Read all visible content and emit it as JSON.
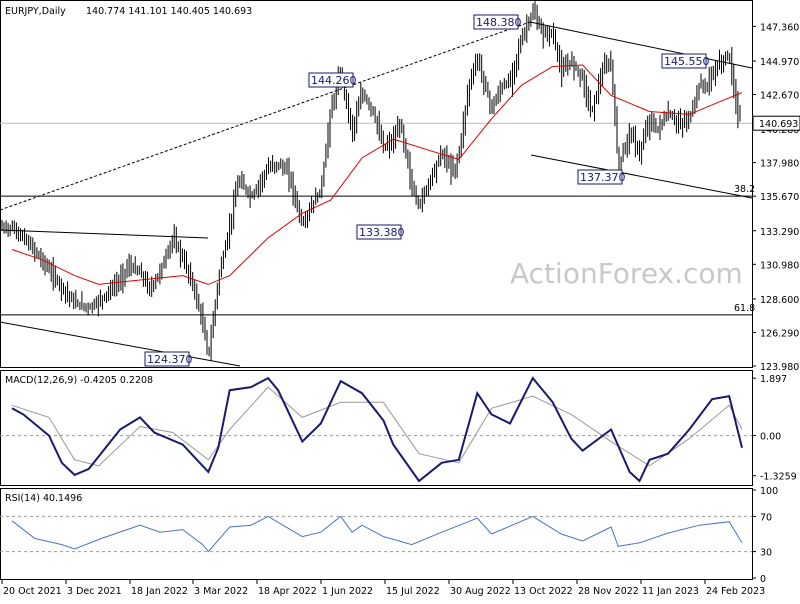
{
  "chart_data": [
    {
      "type": "candlestick",
      "title": "EURJPY,Daily",
      "ohlc_header": "140.774 141.101 140.405 140.693",
      "current_price": 140.693,
      "ylim": [
        123.98,
        148.9
      ],
      "y_ticks": [
        "147.360",
        "144.970",
        "142.670",
        "140.280",
        "137.980",
        "135.670",
        "133.290",
        "130.980",
        "128.600",
        "126.290",
        "123.980"
      ],
      "x_tick_labels": [
        "20 Oct 2021",
        "3 Dec 2021",
        "18 Jan 2022",
        "3 Mar 2022",
        "18 Apr 2022",
        "1 Jun 2022",
        "15 Jul 2022",
        "30 Aug 2022",
        "13 Oct 2022",
        "28 Nov 2022",
        "11 Jan 2023",
        "24 Feb 2023"
      ],
      "annotations": [
        {
          "text": "148.380",
          "value": 148.38
        },
        {
          "text": "145.550",
          "value": 145.55
        },
        {
          "text": "144.260",
          "value": 144.26
        },
        {
          "text": "137.370",
          "value": 137.37
        },
        {
          "text": "133.380",
          "value": 133.38
        },
        {
          "text": "124.370",
          "value": 124.37
        }
      ],
      "fib_levels": [
        {
          "label": "38.2",
          "value": 135.67
        },
        {
          "label": "61.8",
          "value": 127.5
        }
      ],
      "horizontal_line": 140.693,
      "close_path": [
        [
          "2021-10-20",
          133.5
        ],
        [
          "2021-10-28",
          132.8
        ],
        [
          "2021-11-05",
          131.9
        ],
        [
          "2021-11-15",
          130.6
        ],
        [
          "2021-11-24",
          129.4
        ],
        [
          "2021-12-03",
          128.3
        ],
        [
          "2021-12-13",
          128.0
        ],
        [
          "2021-12-22",
          128.6
        ],
        [
          "2022-01-04",
          129.9
        ],
        [
          "2022-01-10",
          130.9
        ],
        [
          "2022-01-18",
          130.4
        ],
        [
          "2022-01-25",
          129.2
        ],
        [
          "2022-02-01",
          130.5
        ],
        [
          "2022-02-10",
          132.8
        ],
        [
          "2022-02-17",
          131.4
        ],
        [
          "2022-02-24",
          129.6
        ],
        [
          "2022-03-03",
          126.9
        ],
        [
          "2022-03-07",
          124.6
        ],
        [
          "2022-03-14",
          130.0
        ],
        [
          "2022-03-22",
          133.6
        ],
        [
          "2022-03-28",
          136.8
        ],
        [
          "2022-04-06",
          135.6
        ],
        [
          "2022-04-18",
          137.6
        ],
        [
          "2022-04-25",
          137.9
        ],
        [
          "2022-05-02",
          137.3
        ],
        [
          "2022-05-12",
          133.7
        ],
        [
          "2022-05-18",
          134.9
        ],
        [
          "2022-05-25",
          136.1
        ],
        [
          "2022-06-01",
          141.6
        ],
        [
          "2022-06-08",
          144.2
        ],
        [
          "2022-06-16",
          140.1
        ],
        [
          "2022-06-23",
          142.8
        ],
        [
          "2022-07-01",
          141.4
        ],
        [
          "2022-07-08",
          139.0
        ],
        [
          "2022-07-15",
          139.5
        ],
        [
          "2022-07-20",
          140.7
        ],
        [
          "2022-07-28",
          136.3
        ],
        [
          "2022-08-02",
          135.0
        ],
        [
          "2022-08-10",
          136.9
        ],
        [
          "2022-08-18",
          138.7
        ],
        [
          "2022-08-26",
          137.3
        ],
        [
          "2022-08-30",
          138.6
        ],
        [
          "2022-09-06",
          143.3
        ],
        [
          "2022-09-12",
          145.2
        ],
        [
          "2022-09-22",
          141.7
        ],
        [
          "2022-09-29",
          143.2
        ],
        [
          "2022-10-05",
          143.6
        ],
        [
          "2022-10-13",
          146.5
        ],
        [
          "2022-10-21",
          148.4
        ],
        [
          "2022-10-28",
          146.8
        ],
        [
          "2022-11-04",
          146.9
        ],
        [
          "2022-11-10",
          144.2
        ],
        [
          "2022-11-17",
          145.0
        ],
        [
          "2022-11-25",
          143.8
        ],
        [
          "2022-12-01",
          141.4
        ],
        [
          "2022-12-09",
          144.3
        ],
        [
          "2022-12-15",
          144.9
        ],
        [
          "2022-12-20",
          137.6
        ],
        [
          "2022-12-28",
          140.1
        ],
        [
          "2023-01-04",
          138.6
        ],
        [
          "2023-01-11",
          141.0
        ],
        [
          "2023-01-16",
          140.2
        ],
        [
          "2023-01-24",
          141.4
        ],
        [
          "2023-02-01",
          140.6
        ],
        [
          "2023-02-08",
          141.0
        ],
        [
          "2023-02-15",
          143.3
        ],
        [
          "2023-02-21",
          143.3
        ],
        [
          "2023-02-24",
          144.1
        ],
        [
          "2023-03-02",
          144.9
        ],
        [
          "2023-03-08",
          145.4
        ],
        [
          "2023-03-13",
          141.8
        ],
        [
          "2023-03-17",
          140.7
        ]
      ],
      "sma_path": [
        [
          "2021-10-20",
          132.0
        ],
        [
          "2021-11-10",
          131.3
        ],
        [
          "2021-12-03",
          130.2
        ],
        [
          "2021-12-20",
          129.6
        ],
        [
          "2022-01-18",
          129.9
        ],
        [
          "2022-02-17",
          130.2
        ],
        [
          "2022-03-07",
          129.6
        ],
        [
          "2022-03-22",
          130.2
        ],
        [
          "2022-04-18",
          132.8
        ],
        [
          "2022-05-12",
          134.5
        ],
        [
          "2022-06-01",
          135.4
        ],
        [
          "2022-06-23",
          138.3
        ],
        [
          "2022-07-15",
          139.6
        ],
        [
          "2022-08-10",
          138.8
        ],
        [
          "2022-08-30",
          138.2
        ],
        [
          "2022-09-22",
          141.0
        ],
        [
          "2022-10-13",
          143.3
        ],
        [
          "2022-11-04",
          144.6
        ],
        [
          "2022-11-25",
          144.7
        ],
        [
          "2022-12-15",
          142.6
        ],
        [
          "2023-01-11",
          141.5
        ],
        [
          "2023-02-08",
          141.3
        ],
        [
          "2023-03-02",
          142.2
        ],
        [
          "2023-03-17",
          142.8
        ]
      ]
    },
    {
      "type": "line",
      "title": "MACD(12,26,9) -0.4205 0.2208",
      "ylim": [
        -1.6,
        2.1
      ],
      "y_ticks": [
        "1.897",
        "0.00",
        "-1.3259"
      ],
      "series": [
        {
          "name": "MACD",
          "points": [
            [
              "2021-10-20",
              0.9
            ],
            [
              "2021-10-28",
              0.7
            ],
            [
              "2021-11-15",
              0.0
            ],
            [
              "2021-11-24",
              -0.9
            ],
            [
              "2021-12-03",
              -1.3
            ],
            [
              "2021-12-13",
              -1.1
            ],
            [
              "2022-01-04",
              0.2
            ],
            [
              "2022-01-18",
              0.6
            ],
            [
              "2022-01-28",
              0.1
            ],
            [
              "2022-02-17",
              -0.3
            ],
            [
              "2022-03-07",
              -1.2
            ],
            [
              "2022-03-14",
              -0.4
            ],
            [
              "2022-03-22",
              1.5
            ],
            [
              "2022-04-06",
              1.6
            ],
            [
              "2022-04-18",
              1.9
            ],
            [
              "2022-04-25",
              1.5
            ],
            [
              "2022-05-12",
              -0.2
            ],
            [
              "2022-05-25",
              0.4
            ],
            [
              "2022-06-08",
              1.8
            ],
            [
              "2022-06-23",
              1.4
            ],
            [
              "2022-07-08",
              0.5
            ],
            [
              "2022-07-15",
              -0.3
            ],
            [
              "2022-08-02",
              -1.5
            ],
            [
              "2022-08-18",
              -0.9
            ],
            [
              "2022-08-30",
              -0.8
            ],
            [
              "2022-09-12",
              1.4
            ],
            [
              "2022-09-22",
              0.7
            ],
            [
              "2022-10-05",
              0.4
            ],
            [
              "2022-10-21",
              1.9
            ],
            [
              "2022-11-04",
              1.1
            ],
            [
              "2022-11-17",
              -0.1
            ],
            [
              "2022-11-25",
              -0.5
            ],
            [
              "2022-12-15",
              0.2
            ],
            [
              "2022-12-28",
              -1.2
            ],
            [
              "2023-01-04",
              -1.5
            ],
            [
              "2023-01-11",
              -0.8
            ],
            [
              "2023-01-24",
              -0.6
            ],
            [
              "2023-02-08",
              0.2
            ],
            [
              "2023-02-24",
              1.2
            ],
            [
              "2023-03-08",
              1.3
            ],
            [
              "2023-03-17",
              -0.4
            ]
          ]
        },
        {
          "name": "Signal",
          "points": [
            [
              "2021-10-20",
              1.0
            ],
            [
              "2021-11-15",
              0.6
            ],
            [
              "2021-12-03",
              -0.8
            ],
            [
              "2021-12-20",
              -1.0
            ],
            [
              "2022-01-18",
              0.3
            ],
            [
              "2022-02-10",
              0.1
            ],
            [
              "2022-03-07",
              -0.8
            ],
            [
              "2022-03-22",
              0.2
            ],
            [
              "2022-04-18",
              1.6
            ],
            [
              "2022-05-12",
              0.6
            ],
            [
              "2022-06-08",
              1.1
            ],
            [
              "2022-07-08",
              1.1
            ],
            [
              "2022-08-02",
              -0.6
            ],
            [
              "2022-08-30",
              -0.9
            ],
            [
              "2022-09-22",
              0.9
            ],
            [
              "2022-10-21",
              1.3
            ],
            [
              "2022-11-17",
              0.7
            ],
            [
              "2022-12-15",
              -0.2
            ],
            [
              "2023-01-11",
              -1.0
            ],
            [
              "2023-02-08",
              -0.1
            ],
            [
              "2023-03-08",
              1.0
            ],
            [
              "2023-03-17",
              0.2
            ]
          ]
        }
      ]
    },
    {
      "type": "line",
      "title": "RSI(14) 40.1496",
      "ylim": [
        0,
        100
      ],
      "y_ticks": [
        "100",
        "70",
        "30",
        "0"
      ],
      "series": [
        {
          "name": "RSI",
          "points": [
            [
              "2021-10-20",
              65
            ],
            [
              "2021-11-05",
              45
            ],
            [
              "2021-11-24",
              38
            ],
            [
              "2021-12-03",
              33
            ],
            [
              "2021-12-22",
              45
            ],
            [
              "2022-01-18",
              60
            ],
            [
              "2022-02-01",
              52
            ],
            [
              "2022-02-17",
              55
            ],
            [
              "2022-03-03",
              38
            ],
            [
              "2022-03-07",
              30
            ],
            [
              "2022-03-22",
              58
            ],
            [
              "2022-04-06",
              60
            ],
            [
              "2022-04-18",
              70
            ],
            [
              "2022-05-12",
              47
            ],
            [
              "2022-05-25",
              52
            ],
            [
              "2022-06-08",
              70
            ],
            [
              "2022-06-16",
              52
            ],
            [
              "2022-06-23",
              60
            ],
            [
              "2022-07-08",
              47
            ],
            [
              "2022-07-28",
              38
            ],
            [
              "2022-08-18",
              52
            ],
            [
              "2022-09-12",
              68
            ],
            [
              "2022-09-22",
              50
            ],
            [
              "2022-10-21",
              70
            ],
            [
              "2022-11-10",
              50
            ],
            [
              "2022-11-25",
              42
            ],
            [
              "2022-12-15",
              58
            ],
            [
              "2022-12-20",
              36
            ],
            [
              "2023-01-04",
              40
            ],
            [
              "2023-01-24",
              51
            ],
            [
              "2023-02-15",
              60
            ],
            [
              "2023-03-08",
              64
            ],
            [
              "2023-03-17",
              40
            ]
          ]
        }
      ]
    }
  ],
  "watermark": "ActionForex.com",
  "colors": {
    "candle": "#000000",
    "sma": "#e00000",
    "macd": "#1a1a6e",
    "signal": "#999999",
    "rsi": "#4a74c6",
    "annotation": "#1a1a6e",
    "price_box": "#ffffff"
  }
}
